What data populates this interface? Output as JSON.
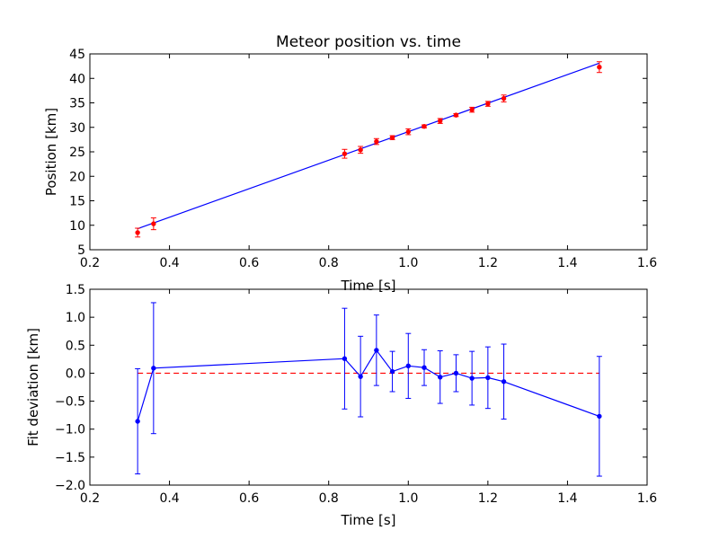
{
  "chart_data": [
    {
      "type": "scatter",
      "title": "Meteor position vs. time",
      "xlabel": "Time [s]",
      "ylabel": "Position [km]",
      "xlim": [
        0.2,
        1.6
      ],
      "ylim": [
        5,
        45
      ],
      "xticks": [
        "0.2",
        "0.4",
        "0.6",
        "0.8",
        "1.0",
        "1.2",
        "1.4",
        "1.6"
      ],
      "yticks": [
        "5",
        "10",
        "15",
        "20",
        "25",
        "30",
        "35",
        "40",
        "45"
      ],
      "grid": false,
      "series": [
        {
          "kind": "errorbar-points",
          "color": "#ff0000",
          "x": [
            0.32,
            0.36,
            0.84,
            0.88,
            0.92,
            0.96,
            1.0,
            1.04,
            1.08,
            1.12,
            1.16,
            1.2,
            1.24,
            1.48
          ],
          "y": [
            8.5,
            10.3,
            24.6,
            25.4,
            27.1,
            27.9,
            29.1,
            30.2,
            31.3,
            32.5,
            33.6,
            34.8,
            35.9,
            42.3
          ],
          "yerr": [
            0.9,
            1.2,
            0.9,
            0.7,
            0.6,
            0.4,
            0.6,
            0.3,
            0.5,
            0.3,
            0.5,
            0.5,
            0.7,
            1.1
          ]
        },
        {
          "kind": "fit-line",
          "color": "#0000ff",
          "x": [
            0.32,
            1.48
          ],
          "y": [
            9.3,
            43.1
          ]
        }
      ]
    },
    {
      "type": "line",
      "title": "",
      "xlabel": "Time [s]",
      "ylabel": "Fit deviation [km]",
      "xlim": [
        0.2,
        1.6
      ],
      "ylim": [
        -2.0,
        1.5
      ],
      "xticks": [
        "0.2",
        "0.4",
        "0.6",
        "0.8",
        "1.0",
        "1.2",
        "1.4",
        "1.6"
      ],
      "yticks": [
        "−2.0",
        "−1.5",
        "−1.0",
        "−0.5",
        "0.0",
        "0.5",
        "1.0",
        "1.5"
      ],
      "grid": false,
      "series": [
        {
          "kind": "errorbar-line",
          "color": "#0000ff",
          "x": [
            0.32,
            0.36,
            0.84,
            0.88,
            0.92,
            0.96,
            1.0,
            1.04,
            1.08,
            1.12,
            1.16,
            1.2,
            1.24,
            1.48
          ],
          "y": [
            -0.86,
            0.09,
            0.26,
            -0.06,
            0.41,
            0.03,
            0.13,
            0.1,
            -0.07,
            0.0,
            -0.09,
            -0.08,
            -0.15,
            -0.77
          ],
          "yerr": [
            0.94,
            1.17,
            0.9,
            0.72,
            0.63,
            0.36,
            0.58,
            0.32,
            0.47,
            0.33,
            0.48,
            0.55,
            0.67,
            1.07
          ]
        },
        {
          "kind": "reference-line",
          "color": "#ff0000",
          "x": [
            0.32,
            1.48
          ],
          "y": [
            0.0,
            0.0
          ]
        }
      ]
    }
  ]
}
